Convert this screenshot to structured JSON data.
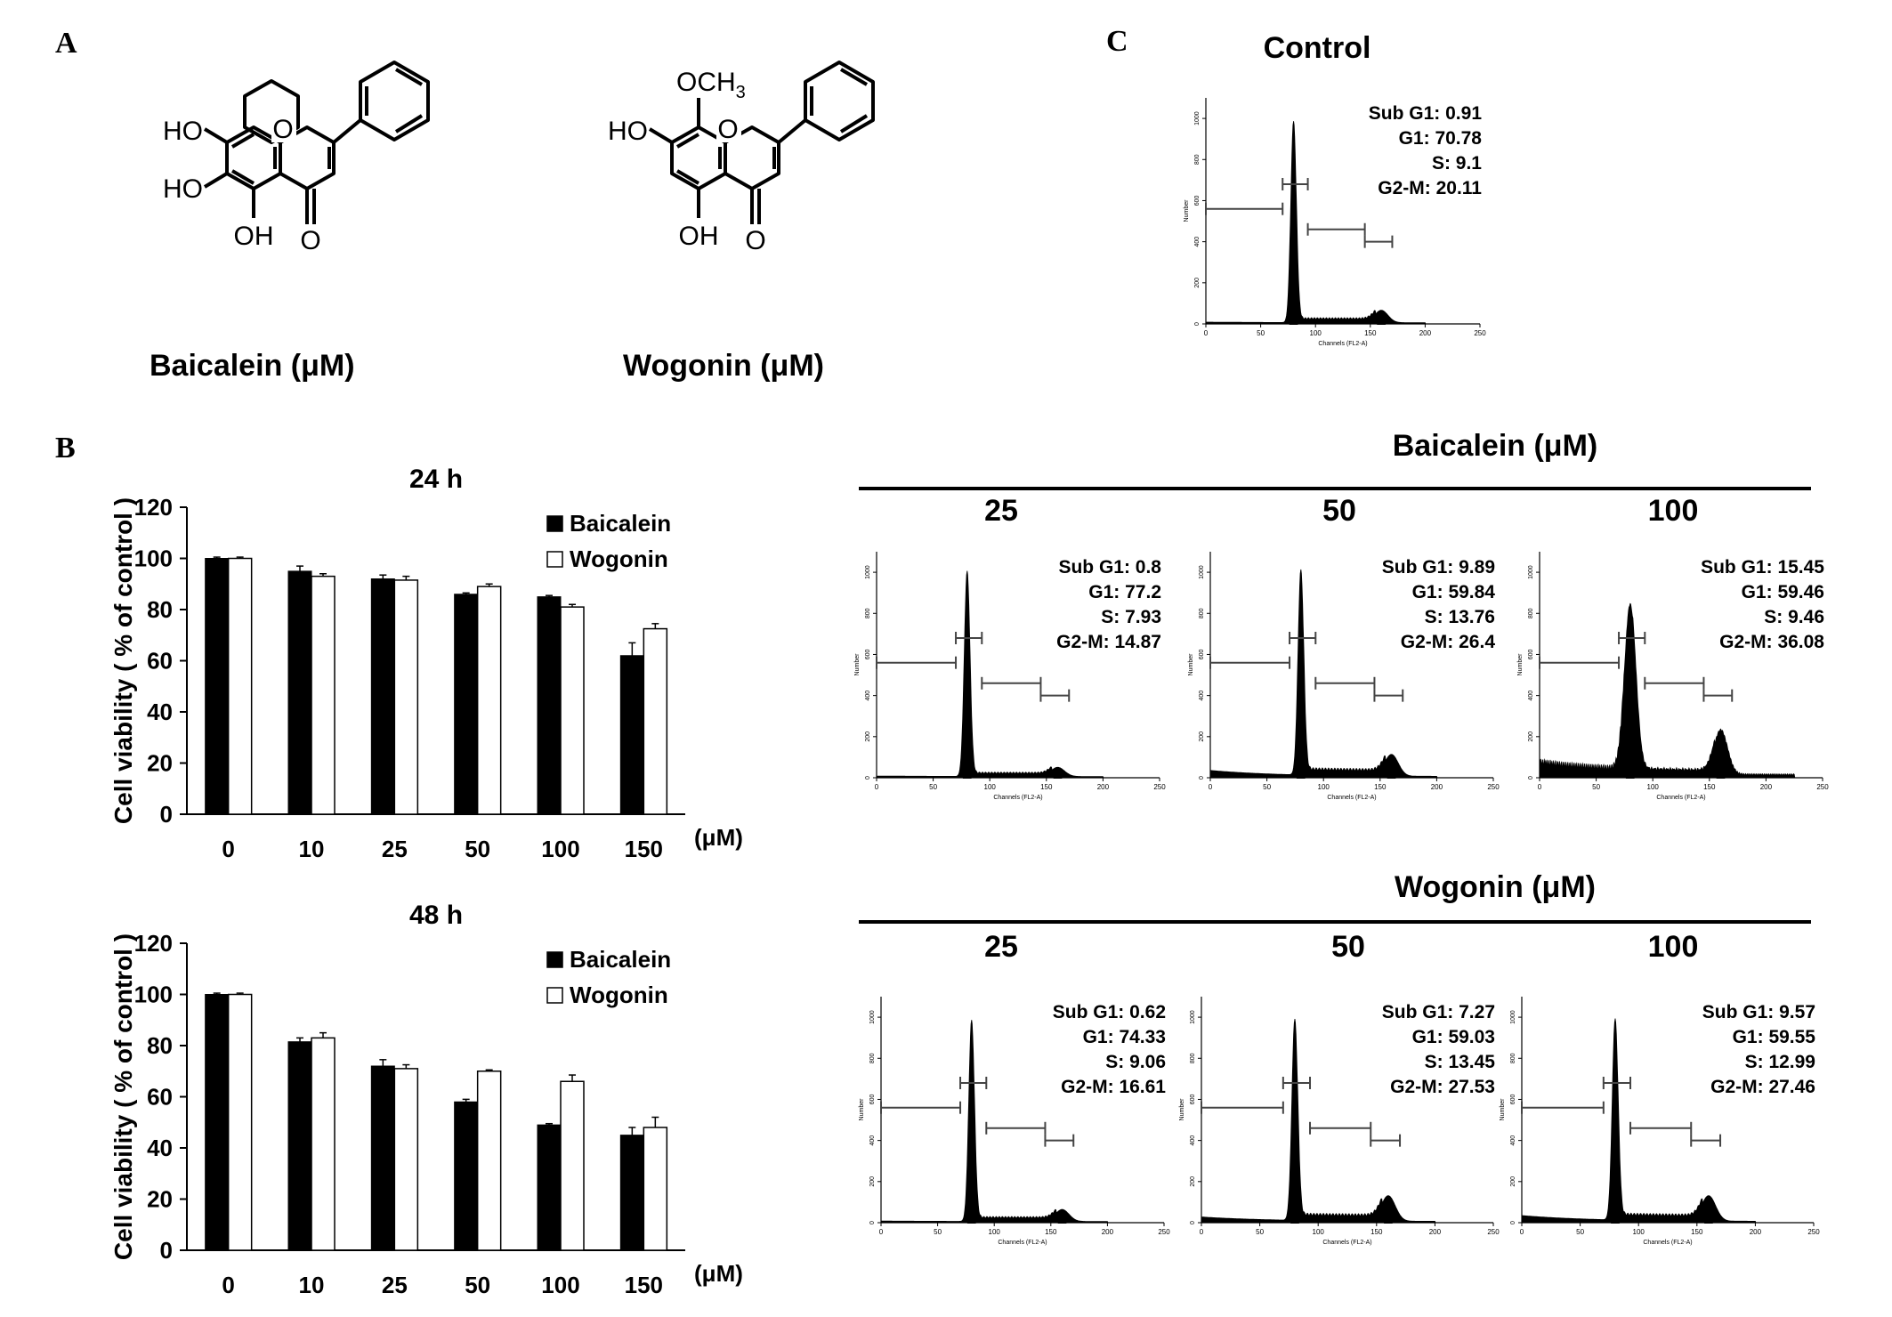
{
  "panels": {
    "A": {
      "label": "A",
      "molecules": [
        {
          "name": "Baicalein",
          "caption": "Baicalein  (μM)",
          "substituents": {
            "ho7": "HO",
            "ho6": "HO",
            "oh5": "OH",
            "ring_o": "O",
            "carbonyl_o": "O"
          }
        },
        {
          "name": "Wogonin",
          "caption": "Wogonin   (μM)",
          "substituents": {
            "och3": "OCH",
            "och3_sub": "3",
            "ho7": "HO",
            "oh5": "OH",
            "ring_o": "O",
            "carbonyl_o": "O"
          }
        }
      ]
    },
    "B": {
      "label": "B"
    },
    "C": {
      "label": "C",
      "control_title": "Control",
      "baicalein_title": "Baicalein (μM)",
      "wogonin_title": "Wogonin (μM)"
    }
  },
  "chart_data": [
    {
      "type": "bar",
      "title": "24 h",
      "ylabel": "Cell viability ( % of control )",
      "xunit": "(μM)",
      "categories": [
        "0",
        "10",
        "25",
        "50",
        "100",
        "150"
      ],
      "ylim": [
        0,
        120
      ],
      "yticks": [
        "0",
        "20",
        "40",
        "60",
        "80",
        "100",
        "120"
      ],
      "legend_position": "top-right",
      "series": [
        {
          "name": "Baicalein",
          "color": "#000000",
          "values": [
            100,
            95,
            92,
            86,
            85,
            62
          ],
          "errors": [
            0.5,
            2,
            1.5,
            0.5,
            0.5,
            5
          ]
        },
        {
          "name": "Wogonin",
          "color": "#ffffff",
          "values": [
            100,
            93,
            91.5,
            89,
            81,
            72.5
          ],
          "errors": [
            0.5,
            1,
            1.5,
            1,
            1,
            2
          ]
        }
      ]
    },
    {
      "type": "bar",
      "title": "48 h",
      "ylabel": "Cell viability ( % of control )",
      "xunit": "(μM)",
      "categories": [
        "0",
        "10",
        "25",
        "50",
        "100",
        "150"
      ],
      "ylim": [
        0,
        120
      ],
      "yticks": [
        "0",
        "20",
        "40",
        "60",
        "80",
        "100",
        "120"
      ],
      "legend_position": "top-right",
      "series": [
        {
          "name": "Baicalein",
          "color": "#000000",
          "values": [
            100,
            81.5,
            72,
            58,
            49,
            45
          ],
          "errors": [
            0.5,
            1.5,
            2.5,
            1,
            0.5,
            3
          ]
        },
        {
          "name": "Wogonin",
          "color": "#ffffff",
          "values": [
            100,
            83,
            71,
            70,
            66,
            48
          ],
          "errors": [
            0.5,
            2,
            1.5,
            0.5,
            2.5,
            4
          ]
        }
      ]
    }
  ],
  "histograms": {
    "xlabel": "Channels (FL2-A)",
    "ylabel": "Number",
    "xticks": [
      "0",
      "50",
      "100",
      "150",
      "200",
      "250"
    ],
    "yticks": [
      "0",
      "200",
      "400",
      "600",
      "800",
      "1000"
    ],
    "stat_labels": {
      "subg1": "Sub G1:",
      "g1": "G1:",
      "s": "S:",
      "g2m": "G2-M:"
    },
    "control": {
      "subg1": "0.91",
      "g1": "70.78",
      "s": "9.1",
      "g2m": "20.11"
    },
    "baicalein": [
      {
        "dose": "25",
        "subg1": "0.8",
        "g1": "77.2",
        "s": "7.93",
        "g2m": "14.87"
      },
      {
        "dose": "50",
        "subg1": "9.89",
        "g1": "59.84",
        "s": "13.76",
        "g2m": "26.4"
      },
      {
        "dose": "100",
        "subg1": "15.45",
        "g1": "59.46",
        "s": "9.46",
        "g2m": "36.08"
      }
    ],
    "wogonin": [
      {
        "dose": "25",
        "subg1": "0.62",
        "g1": "74.33",
        "s": "9.06",
        "g2m": "16.61"
      },
      {
        "dose": "50",
        "subg1": "7.27",
        "g1": "59.03",
        "s": "13.45",
        "g2m": "27.53"
      },
      {
        "dose": "100",
        "subg1": "9.57",
        "g1": "59.55",
        "s": "12.99",
        "g2m": "27.46"
      }
    ]
  }
}
